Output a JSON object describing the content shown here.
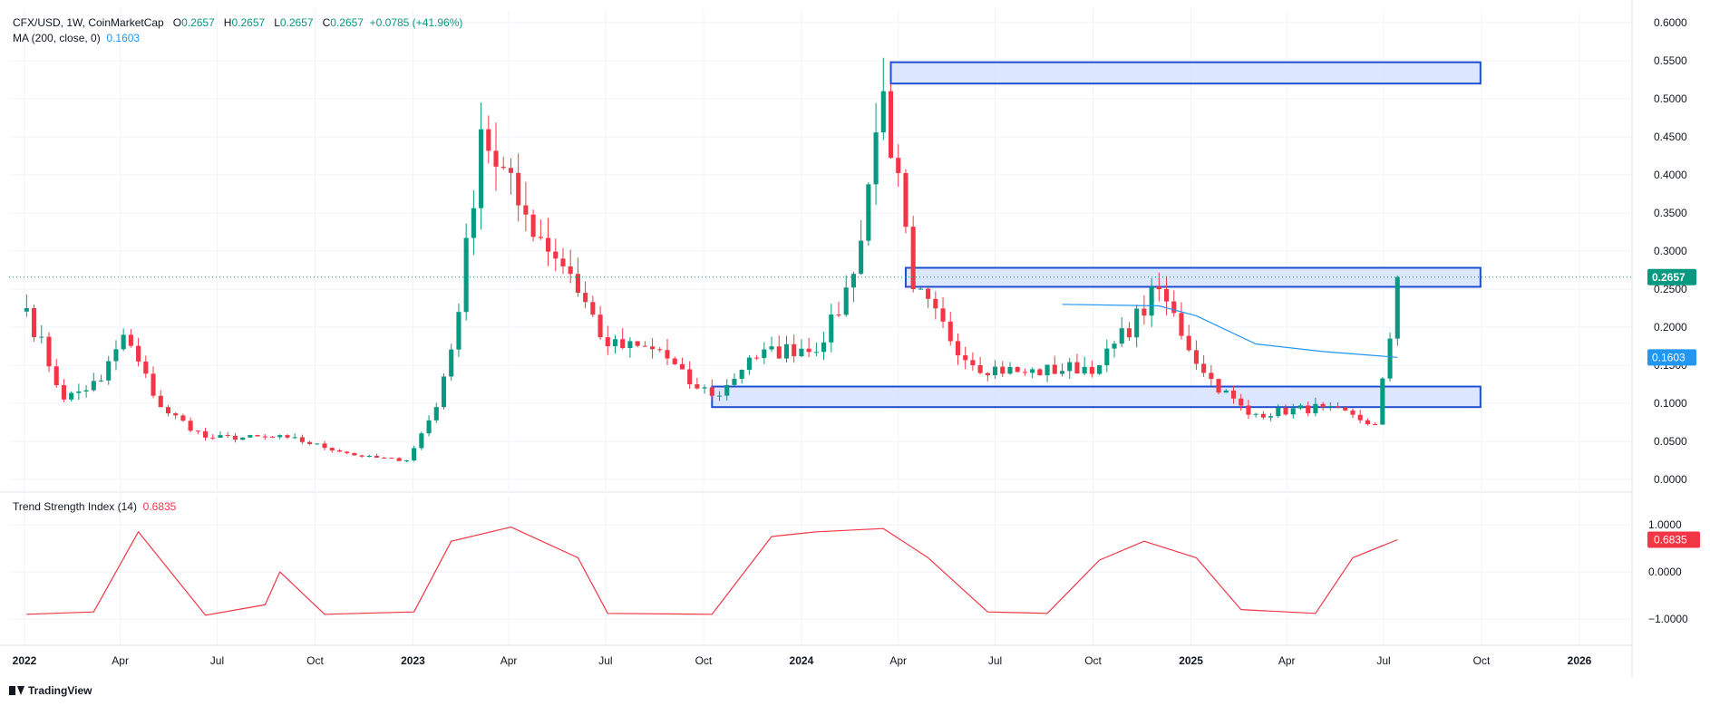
{
  "legend": {
    "symbol": "CFX/USD, 1W, CoinMarketCap",
    "o_label": "O",
    "o_value": "0.2657",
    "h_label": "H",
    "h_value": "0.2657",
    "l_label": "L",
    "l_value": "0.2657",
    "c_label": "C",
    "c_value": "0.2657",
    "change": "+0.0785 (+41.96%)",
    "ma_label": "MA (200, close, 0)",
    "ma_value": "0.1603",
    "tsi_label": "Trend Strength Index (14)",
    "tsi_value": "0.6835"
  },
  "brand": "TradingView",
  "colors": {
    "up": "#089981",
    "down": "#f23645",
    "ma": "#2196f3",
    "tsi": "#f23645",
    "zone_fill": "#d6e2fb",
    "zone_stroke": "#1f4fd1",
    "price_line": "#089981",
    "grid": "#f0f3fa",
    "axis_text": "#131722"
  },
  "chart_data": [
    {
      "type": "candlestick",
      "title": "CFX/USD, 1W, CoinMarketCap",
      "y_ticks": [
        "0.0000",
        "0.0500",
        "0.1000",
        "0.1500",
        "0.2000",
        "0.2500",
        "0.3000",
        "0.3500",
        "0.4000",
        "0.4500",
        "0.5000",
        "0.5500",
        "0.6000"
      ],
      "x_ticks": [
        "2022",
        "Apr",
        "Jul",
        "Oct",
        "2023",
        "Apr",
        "Jul",
        "Oct",
        "2024",
        "Apr",
        "Jul",
        "Oct",
        "2025",
        "Apr",
        "Jul",
        "Oct",
        "2026"
      ],
      "ylim": [
        0,
        0.6
      ],
      "last_price": "0.2657",
      "ma_price": "0.1603",
      "grid": true,
      "zones": [
        {
          "from": "2024-03-25",
          "to": "2025-09-30",
          "low": 0.52,
          "high": 0.548
        },
        {
          "from": "2024-04-08",
          "to": "2025-09-30",
          "low": 0.253,
          "high": 0.278
        },
        {
          "from": "2023-10-09",
          "to": "2025-09-30",
          "low": 0.095,
          "high": 0.122
        }
      ],
      "ohlc_keyframes": [
        {
          "date": "2022-01-03",
          "close": 0.225
        },
        {
          "date": "2022-02-07",
          "close": 0.105
        },
        {
          "date": "2022-03-14",
          "close": 0.13
        },
        {
          "date": "2022-04-04",
          "close": 0.19
        },
        {
          "date": "2022-05-09",
          "close": 0.095
        },
        {
          "date": "2022-06-20",
          "close": 0.055
        },
        {
          "date": "2022-09-05",
          "close": 0.055
        },
        {
          "date": "2022-11-14",
          "close": 0.03
        },
        {
          "date": "2022-12-26",
          "close": 0.025
        },
        {
          "date": "2023-01-23",
          "close": 0.095
        },
        {
          "date": "2023-02-13",
          "close": 0.22
        },
        {
          "date": "2023-03-06",
          "close": 0.46
        },
        {
          "date": "2023-04-10",
          "close": 0.36
        },
        {
          "date": "2023-05-29",
          "close": 0.27
        },
        {
          "date": "2023-07-03",
          "close": 0.175
        },
        {
          "date": "2023-08-21",
          "close": 0.17
        },
        {
          "date": "2023-09-18",
          "close": 0.125
        },
        {
          "date": "2023-10-16",
          "close": 0.11
        },
        {
          "date": "2023-11-13",
          "close": 0.16
        },
        {
          "date": "2024-01-22",
          "close": 0.18
        },
        {
          "date": "2024-02-19",
          "close": 0.27
        },
        {
          "date": "2024-03-18",
          "close": 0.51
        },
        {
          "date": "2024-04-15",
          "close": 0.25
        },
        {
          "date": "2024-06-10",
          "close": 0.15
        },
        {
          "date": "2024-07-29",
          "close": 0.14
        },
        {
          "date": "2024-10-07",
          "close": 0.15
        },
        {
          "date": "2024-12-02",
          "close": 0.25
        },
        {
          "date": "2025-01-13",
          "close": 0.14
        },
        {
          "date": "2025-02-24",
          "close": 0.085
        },
        {
          "date": "2025-05-05",
          "close": 0.095
        },
        {
          "date": "2025-06-23",
          "close": 0.072
        },
        {
          "date": "2025-07-07",
          "close": 0.185
        },
        {
          "date": "2025-07-14",
          "close": 0.2657
        }
      ],
      "ma_series": [
        {
          "date": "2024-09-02",
          "value": 0.23
        },
        {
          "date": "2024-12-02",
          "value": 0.228
        },
        {
          "date": "2025-01-06",
          "value": 0.215
        },
        {
          "date": "2025-03-03",
          "value": 0.178
        },
        {
          "date": "2025-05-05",
          "value": 0.168
        },
        {
          "date": "2025-07-14",
          "value": 0.1603
        }
      ]
    },
    {
      "type": "line",
      "title": "Trend Strength Index (14)",
      "y_ticks": [
        "1.0000",
        "0.0000",
        "−1.0000"
      ],
      "ylim": [
        -1.2,
        1.2
      ],
      "last_value": "0.6835",
      "series": [
        {
          "values": [
            {
              "date": "2022-01-03",
              "value": -0.9
            },
            {
              "date": "2022-03-07",
              "value": -0.85
            },
            {
              "date": "2022-04-18",
              "value": 0.85
            },
            {
              "date": "2022-06-20",
              "value": -0.92
            },
            {
              "date": "2022-08-15",
              "value": -0.7
            },
            {
              "date": "2022-08-29",
              "value": 0.0
            },
            {
              "date": "2022-10-10",
              "value": -0.9
            },
            {
              "date": "2023-01-02",
              "value": -0.85
            },
            {
              "date": "2023-02-06",
              "value": 0.65
            },
            {
              "date": "2023-04-03",
              "value": 0.95
            },
            {
              "date": "2023-06-05",
              "value": 0.3
            },
            {
              "date": "2023-07-03",
              "value": -0.88
            },
            {
              "date": "2023-10-09",
              "value": -0.9
            },
            {
              "date": "2023-12-04",
              "value": 0.75
            },
            {
              "date": "2024-01-15",
              "value": 0.85
            },
            {
              "date": "2024-03-18",
              "value": 0.92
            },
            {
              "date": "2024-04-29",
              "value": 0.3
            },
            {
              "date": "2024-06-24",
              "value": -0.85
            },
            {
              "date": "2024-08-19",
              "value": -0.88
            },
            {
              "date": "2024-10-07",
              "value": 0.25
            },
            {
              "date": "2024-11-18",
              "value": 0.65
            },
            {
              "date": "2025-01-06",
              "value": 0.3
            },
            {
              "date": "2025-02-17",
              "value": -0.8
            },
            {
              "date": "2025-04-28",
              "value": -0.88
            },
            {
              "date": "2025-06-02",
              "value": 0.3
            },
            {
              "date": "2025-07-14",
              "value": 0.6835
            }
          ]
        }
      ]
    }
  ]
}
